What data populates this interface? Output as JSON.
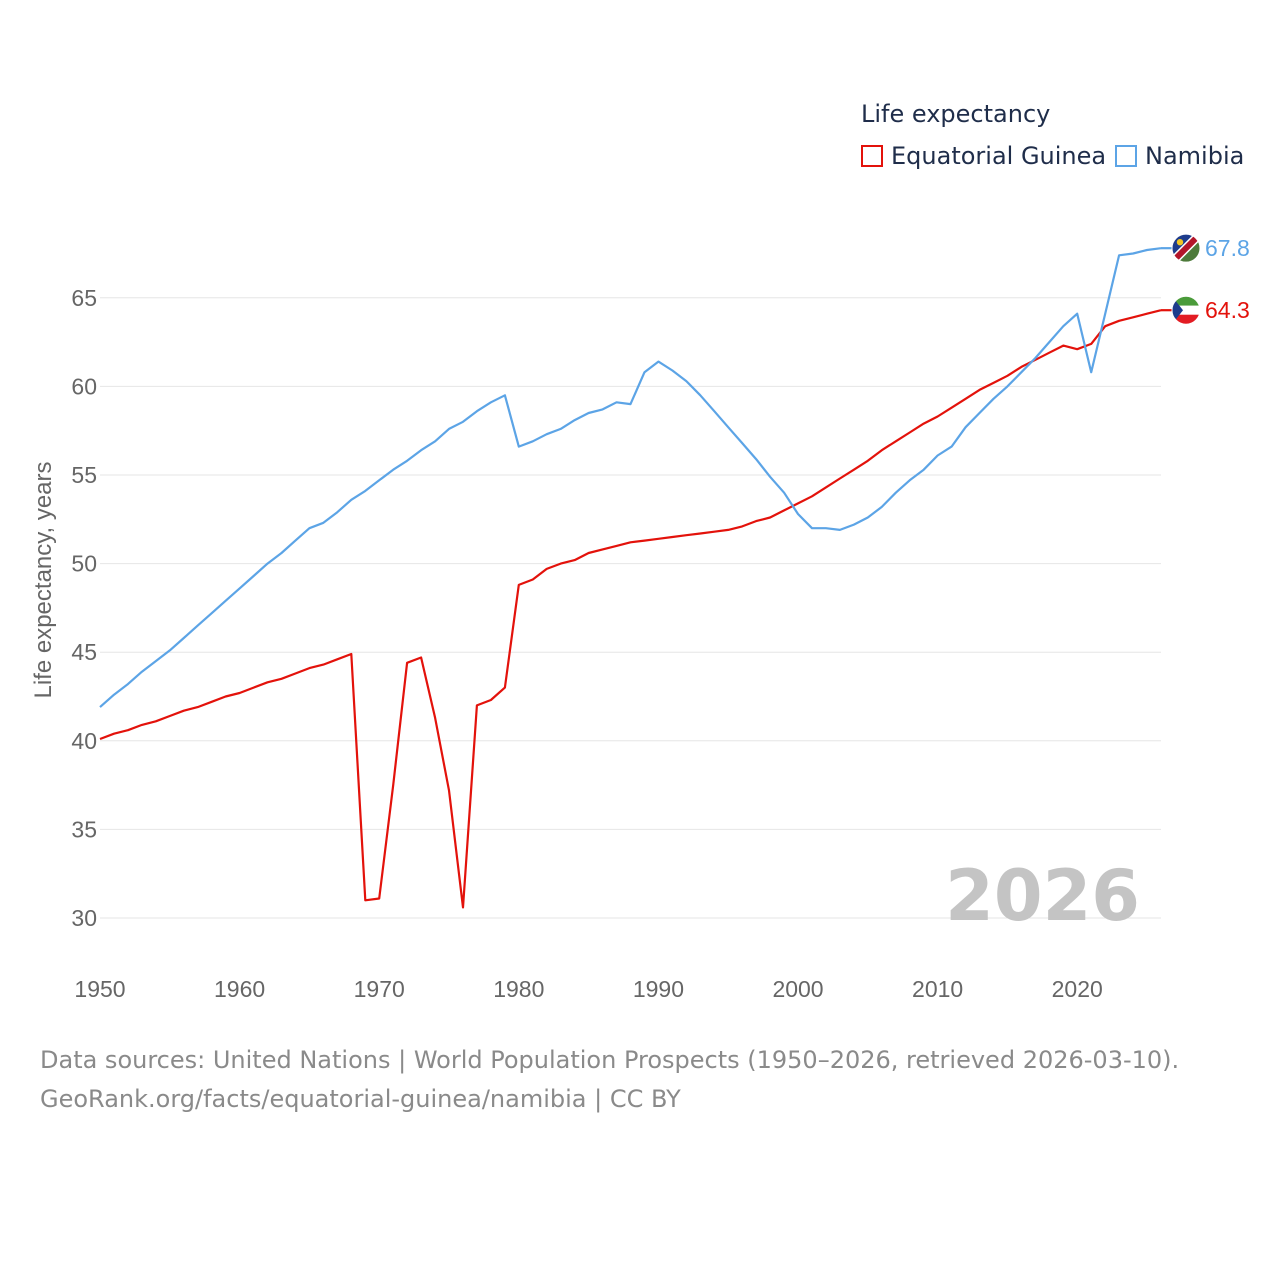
{
  "chart_data": {
    "type": "line",
    "title": "Life expectancy",
    "ylabel": "Life expectancy, years",
    "xlabel": "",
    "xlim": [
      1950,
      2026
    ],
    "ylim": [
      28,
      69
    ],
    "x_ticks": [
      1950,
      1960,
      1970,
      1980,
      1990,
      2000,
      2010,
      2020
    ],
    "y_ticks": [
      30,
      35,
      40,
      45,
      50,
      55,
      60,
      65
    ],
    "year_watermark": "2026",
    "series": [
      {
        "name": "Equatorial Guinea",
        "color": "#e3120b",
        "end_label": "64.3",
        "x": [
          1950,
          1951,
          1952,
          1953,
          1954,
          1955,
          1956,
          1957,
          1958,
          1959,
          1960,
          1961,
          1962,
          1963,
          1964,
          1965,
          1966,
          1967,
          1968,
          1969,
          1970,
          1971,
          1972,
          1973,
          1974,
          1975,
          1976,
          1977,
          1978,
          1979,
          1980,
          1981,
          1982,
          1983,
          1984,
          1985,
          1986,
          1987,
          1988,
          1989,
          1990,
          1991,
          1992,
          1993,
          1994,
          1995,
          1996,
          1997,
          1998,
          1999,
          2000,
          2001,
          2002,
          2003,
          2004,
          2005,
          2006,
          2007,
          2008,
          2009,
          2010,
          2011,
          2012,
          2013,
          2014,
          2015,
          2016,
          2017,
          2018,
          2019,
          2020,
          2021,
          2022,
          2023,
          2024,
          2025,
          2026
        ],
        "values": [
          40.1,
          40.4,
          40.6,
          40.9,
          41.1,
          41.4,
          41.7,
          41.9,
          42.2,
          42.5,
          42.7,
          43.0,
          43.3,
          43.5,
          43.8,
          44.1,
          44.3,
          44.6,
          44.9,
          31.0,
          31.1,
          37.5,
          44.4,
          44.7,
          41.3,
          37.2,
          30.6,
          42.0,
          42.3,
          43.0,
          48.8,
          49.1,
          49.7,
          50.0,
          50.2,
          50.6,
          50.8,
          51.0,
          51.2,
          51.3,
          51.4,
          51.5,
          51.6,
          51.7,
          51.8,
          51.9,
          52.1,
          52.4,
          52.6,
          53.0,
          53.4,
          53.8,
          54.3,
          54.8,
          55.3,
          55.8,
          56.4,
          56.9,
          57.4,
          57.9,
          58.3,
          58.8,
          59.3,
          59.8,
          60.2,
          60.6,
          61.1,
          61.5,
          61.9,
          62.3,
          62.1,
          62.4,
          63.4,
          63.7,
          63.9,
          64.1,
          64.3
        ]
      },
      {
        "name": "Namibia",
        "color": "#5ca4e6",
        "end_label": "67.8",
        "x": [
          1950,
          1951,
          1952,
          1953,
          1954,
          1955,
          1956,
          1957,
          1958,
          1959,
          1960,
          1961,
          1962,
          1963,
          1964,
          1965,
          1966,
          1967,
          1968,
          1969,
          1970,
          1971,
          1972,
          1973,
          1974,
          1975,
          1976,
          1977,
          1978,
          1979,
          1980,
          1981,
          1982,
          1983,
          1984,
          1985,
          1986,
          1987,
          1988,
          1989,
          1990,
          1991,
          1992,
          1993,
          1994,
          1995,
          1996,
          1997,
          1998,
          1999,
          2000,
          2001,
          2002,
          2003,
          2004,
          2005,
          2006,
          2007,
          2008,
          2009,
          2010,
          2011,
          2012,
          2013,
          2014,
          2015,
          2016,
          2017,
          2018,
          2019,
          2020,
          2021,
          2022,
          2023,
          2024,
          2025,
          2026
        ],
        "values": [
          41.9,
          42.6,
          43.2,
          43.9,
          44.5,
          45.1,
          45.8,
          46.5,
          47.2,
          47.9,
          48.6,
          49.3,
          50.0,
          50.6,
          51.3,
          52.0,
          52.3,
          52.9,
          53.6,
          54.1,
          54.7,
          55.3,
          55.8,
          56.4,
          56.9,
          57.6,
          58.0,
          58.6,
          59.1,
          59.5,
          56.6,
          56.9,
          57.3,
          57.6,
          58.1,
          58.5,
          58.7,
          59.1,
          59.0,
          60.8,
          61.4,
          60.9,
          60.3,
          59.5,
          58.6,
          57.7,
          56.8,
          55.9,
          54.9,
          54.0,
          52.8,
          52.0,
          52.0,
          51.9,
          52.2,
          52.6,
          53.2,
          54.0,
          54.7,
          55.3,
          56.1,
          56.6,
          57.7,
          58.5,
          59.3,
          60.0,
          60.8,
          61.6,
          62.5,
          63.4,
          64.1,
          60.8,
          64.1,
          67.4,
          67.5,
          67.7,
          67.8
        ]
      }
    ]
  },
  "footer": {
    "line1": "Data sources: United Nations | World Population Prospects (1950–2026, retrieved 2026-03-10).",
    "line2": "GeoRank.org/facts/equatorial-guinea/namibia | CC BY"
  }
}
